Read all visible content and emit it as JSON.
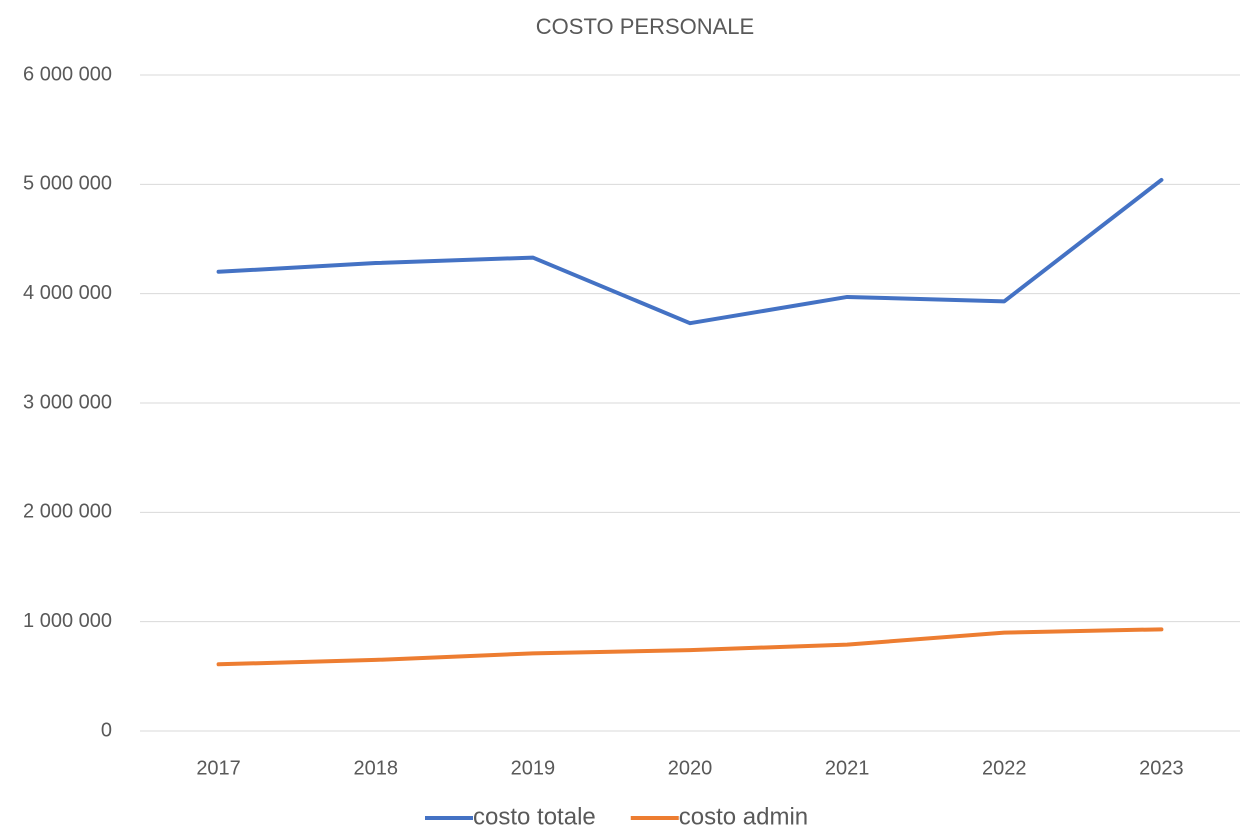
{
  "chart_data": {
    "type": "line",
    "title": "COSTO PERSONALE",
    "categories": [
      "2017",
      "2018",
      "2019",
      "2020",
      "2021",
      "2022",
      "2023"
    ],
    "series": [
      {
        "name": "costo totale",
        "color": "#4472c4",
        "values": [
          4200000,
          4280000,
          4330000,
          3730000,
          3970000,
          3930000,
          5040000
        ]
      },
      {
        "name": "costo admin",
        "color": "#ed7d31",
        "values": [
          610000,
          650000,
          710000,
          740000,
          790000,
          900000,
          930000
        ]
      }
    ],
    "ylim": [
      0,
      6000000
    ],
    "yticks": [
      0,
      {
        "value": 1000000,
        "label": "1 000 000"
      },
      {
        "value": 2000000,
        "label": "2 000 000"
      },
      {
        "value": 3000000,
        "label": "3 000 000"
      },
      {
        "value": 4000000,
        "label": "4 000 000"
      },
      {
        "value": 5000000,
        "label": "5 000 000"
      },
      {
        "value": 6000000,
        "label": "6 000 000"
      }
    ],
    "grid": true,
    "legend": "bottom"
  }
}
